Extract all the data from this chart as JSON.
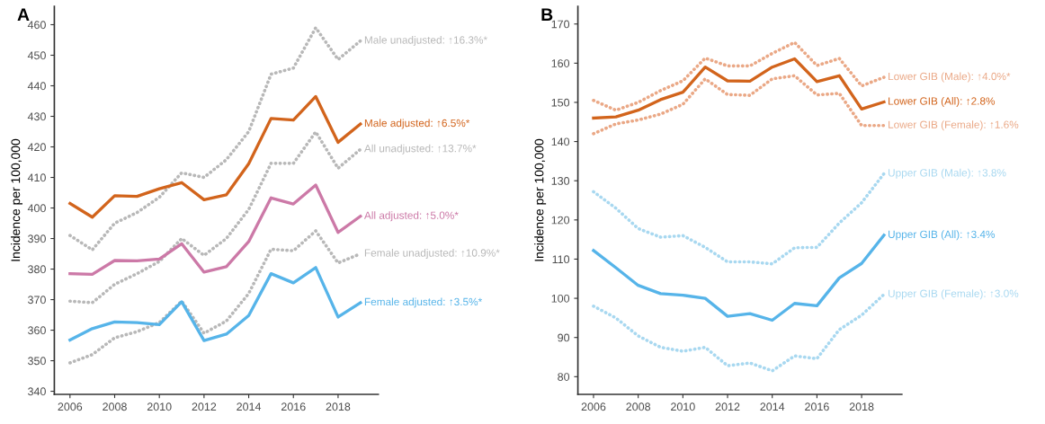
{
  "chart_data": [
    {
      "type": "line",
      "annotations": [
        "A"
      ],
      "ylabel": "Incidence per 100,000",
      "x": [
        2006,
        2007,
        2008,
        2009,
        2010,
        2011,
        2012,
        2013,
        2014,
        2015,
        2016,
        2017,
        2018,
        2019
      ],
      "xlim": [
        2005.3,
        2019.8
      ],
      "xticks": [
        2006,
        2008,
        2010,
        2012,
        2014,
        2016,
        2018
      ],
      "ylim": [
        339,
        466
      ],
      "yticks": [
        340,
        350,
        360,
        370,
        380,
        390,
        400,
        410,
        420,
        430,
        440,
        450,
        460
      ],
      "grid": false,
      "legend": false,
      "series": [
        {
          "name": "Male unadjusted: ↑16.3%*",
          "color": "#b8b8b8",
          "line_style": "dotted",
          "values": [
            391,
            386.3,
            395,
            398.5,
            403.5,
            411.5,
            410,
            415.8,
            425,
            443.8,
            445.8,
            459,
            448.6,
            454.7
          ]
        },
        {
          "name": "Male adjusted: ↑6.5%*",
          "color": "#d2641c",
          "line_style": "solid",
          "values": [
            401.5,
            397,
            404,
            403.8,
            406.3,
            408.3,
            402.7,
            404.3,
            414.5,
            429.3,
            428.8,
            436.5,
            421.5,
            427.5
          ]
        },
        {
          "name": "All unadjusted: ↑13.7%*",
          "color": "#b8b8b8",
          "line_style": "dotted",
          "values": [
            369.5,
            369,
            375,
            378.5,
            382.5,
            390,
            384.5,
            390,
            399.5,
            414.6,
            414.6,
            424.9,
            413,
            419.2
          ]
        },
        {
          "name": "All adjusted: ↑5.0%*",
          "color": "#cc79a7",
          "line_style": "solid",
          "values": [
            378.5,
            378.3,
            382.8,
            382.7,
            383.3,
            388.3,
            379,
            380.8,
            389,
            403.3,
            401.3,
            407.5,
            392,
            397.3
          ]
        },
        {
          "name": "Female unadjusted: ↑10.9%*",
          "color": "#b8b8b8",
          "line_style": "dotted",
          "values": [
            349.3,
            352,
            357.5,
            359.5,
            362.5,
            369.5,
            359,
            363,
            372,
            386.5,
            386,
            392.5,
            382,
            385
          ]
        },
        {
          "name": "Female adjusted: ↑3.5%*",
          "color": "#56b4e9",
          "line_style": "solid",
          "values": [
            356.8,
            360.5,
            362.7,
            362.5,
            361.8,
            369.3,
            356.6,
            358.7,
            364.8,
            378.5,
            375.5,
            380.5,
            364.3,
            369
          ]
        }
      ]
    },
    {
      "type": "line",
      "annotations": [
        "B"
      ],
      "ylabel": "Incidence per 100,000",
      "x": [
        2006,
        2007,
        2008,
        2009,
        2010,
        2011,
        2012,
        2013,
        2014,
        2015,
        2016,
        2017,
        2018,
        2019
      ],
      "xlim": [
        2005.3,
        2019.8
      ],
      "xticks": [
        2006,
        2008,
        2010,
        2012,
        2014,
        2016,
        2018
      ],
      "ylim": [
        75.5,
        174.5
      ],
      "yticks": [
        80,
        90,
        100,
        110,
        120,
        130,
        140,
        150,
        160,
        170
      ],
      "grid": false,
      "legend": false,
      "series": [
        {
          "name": "Lower GIB (Male): ↑4.0%*",
          "color": "#eaa886",
          "line_style": "dotted",
          "values": [
            150.5,
            148,
            150,
            153,
            155.5,
            161.3,
            159.3,
            159.3,
            162.5,
            165.3,
            159.4,
            161.2,
            154.2,
            156.4
          ]
        },
        {
          "name": "Lower GIB (All): ↑2.8%",
          "color": "#d2641c",
          "line_style": "solid",
          "values": [
            146,
            146.3,
            148,
            150.7,
            152.6,
            159,
            155.5,
            155.4,
            159,
            161.1,
            155.3,
            156.8,
            148.3,
            150.1
          ]
        },
        {
          "name": "Lower GIB (Female): ↑1.6%",
          "color": "#eaa886",
          "line_style": "dotted",
          "values": [
            142,
            144.5,
            145.5,
            147,
            149.5,
            156,
            152,
            151.8,
            156,
            156.8,
            151.9,
            152.3,
            144.1,
            144.1
          ]
        },
        {
          "name": "Upper GIB (Male): ↑3.8%",
          "color": "#a8d8f0",
          "line_style": "dotted",
          "values": [
            127.2,
            123,
            117.8,
            115.6,
            116,
            113,
            109.3,
            109.3,
            108.8,
            112.9,
            113,
            119.2,
            124.4,
            131.8
          ]
        },
        {
          "name": "Upper GIB (All): ↑3.4%",
          "color": "#56b4e9",
          "line_style": "solid",
          "values": [
            112.2,
            107.8,
            103.3,
            101.2,
            100.8,
            100,
            95.4,
            96.1,
            94.4,
            98.7,
            98.1,
            105.2,
            108.9,
            116.1
          ]
        },
        {
          "name": "Upper GIB (Female): ↑3.0%",
          "color": "#a8d8f0",
          "line_style": "dotted",
          "values": [
            98,
            95,
            90.4,
            87.5,
            86.5,
            87.5,
            82.8,
            83.5,
            81.5,
            85.3,
            84.6,
            92,
            95.7,
            101
          ]
        }
      ]
    }
  ]
}
